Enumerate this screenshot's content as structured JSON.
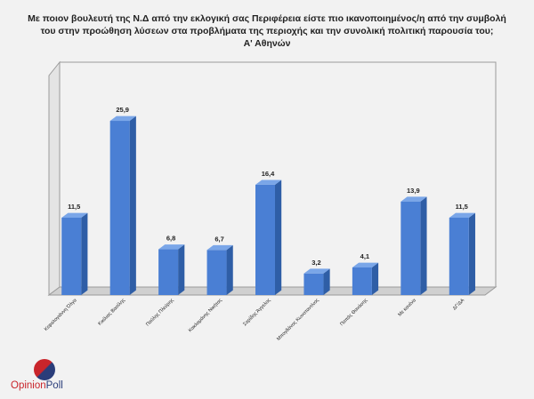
{
  "title": {
    "line1": "Με ποιον βουλευτή της Ν.Δ από την εκλογική σας Περιφέρεια είστε πιο ικανοποιημένος/η από την συμβολή",
    "line2": "του στην προώθηση λύσεων στα προβλήματα της περιοχής και την συνολική πολιτική παρουσία του;",
    "line3": "Α' Αθηνών"
  },
  "logo": {
    "part1": "Opinion",
    "part2": "Poll"
  },
  "colors": {
    "bar_front": "#4a7fd4",
    "bar_side": "#2f5ea6",
    "bar_top": "#7aa6e8",
    "floor": "#d0d0d0"
  },
  "chart_data": {
    "type": "bar",
    "title": "Με ποιον βουλευτή της Ν.Δ από την εκλογική σας Περιφέρεια είστε πιο ικανοποιημένος/η από την συμβολή του στην προώθηση λύσεων στα προβλήματα της περιοχής και την συνολική πολιτική παρουσία του; Α' Αθηνών",
    "categories": [
      "Κεφαλογιάννη Όλγα",
      "Κικίλιας Βασίλης",
      "Παύλης Πλεύρης",
      "Κακλαμάνης Νικήτας",
      "Σαρίδης Άγγελος",
      "Μπογδάνος Κωνσταντίνος",
      "Παπάς Θανάσης",
      "Με κανένα",
      "ΔΓ/ΔΑ"
    ],
    "values": [
      11.5,
      25.9,
      6.8,
      6.7,
      16.4,
      3.2,
      4.1,
      13.9,
      11.5
    ],
    "labels": [
      "11,5",
      "25,9",
      "6,8",
      "6,7",
      "16,4",
      "3,2",
      "4,1",
      "13,9",
      "11,5"
    ],
    "xlabel": "",
    "ylabel": "",
    "ylim": [
      0,
      30
    ],
    "grid": false,
    "legend": "none"
  }
}
